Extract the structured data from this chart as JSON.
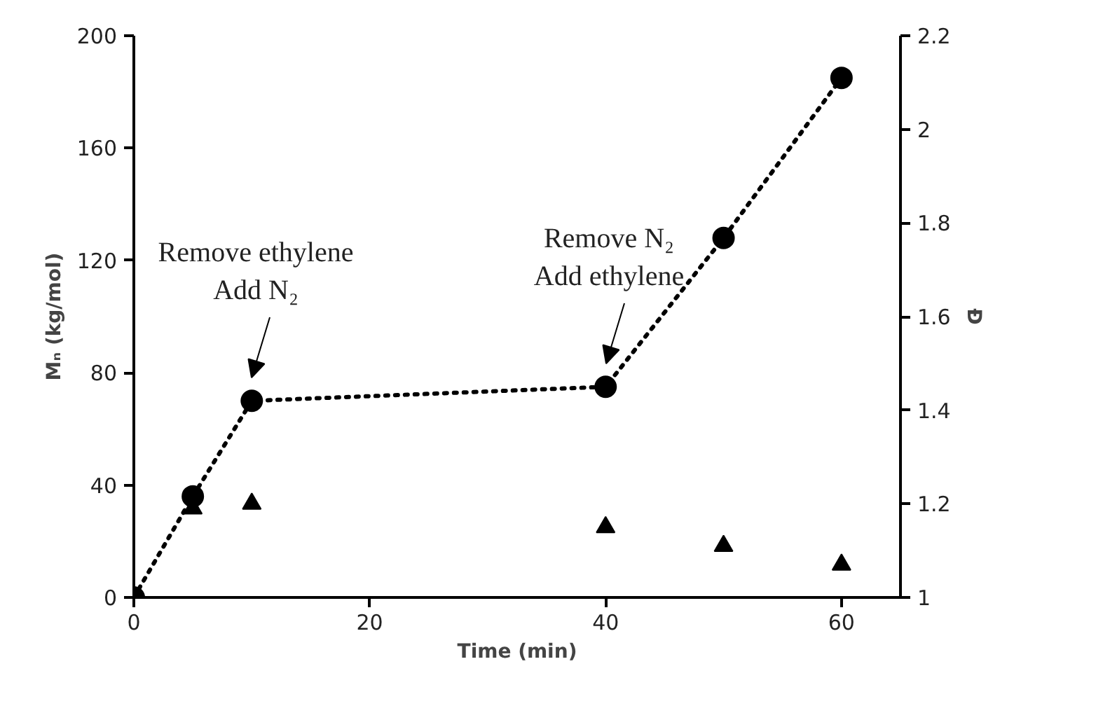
{
  "chart_data": {
    "type": "line",
    "xlabel": "Time (min)",
    "ylabel": "Mₙ (kg/mol)",
    "y2label": "Đ",
    "xlim": [
      0,
      65
    ],
    "xticks": [
      0,
      20,
      40,
      60
    ],
    "ylim": [
      0,
      200
    ],
    "yticks": [
      0,
      40,
      80,
      120,
      160,
      200
    ],
    "y2lim": [
      1,
      2.2
    ],
    "y2ticks": [
      1,
      1.2,
      1.4,
      1.6,
      1.8,
      2,
      2.2
    ],
    "grid": false,
    "series": [
      {
        "color": "#000000",
        "marker": "circle",
        "line_style": "dotted",
        "x": [
          0,
          5,
          10,
          40,
          50,
          60
        ],
        "values": [
          0,
          36,
          70,
          75,
          128,
          185
        ]
      },
      {
        "type": "scatter",
        "color": "#000000",
        "marker": "triangle",
        "axis": "y2",
        "x": [
          5,
          10,
          40,
          50,
          60
        ],
        "values": [
          1.19,
          1.2,
          1.15,
          1.11,
          1.07
        ]
      }
    ],
    "annotations": [
      "Remove ethylene\nAdd N₂",
      "Remove N₂\nAdd ethylene"
    ]
  }
}
